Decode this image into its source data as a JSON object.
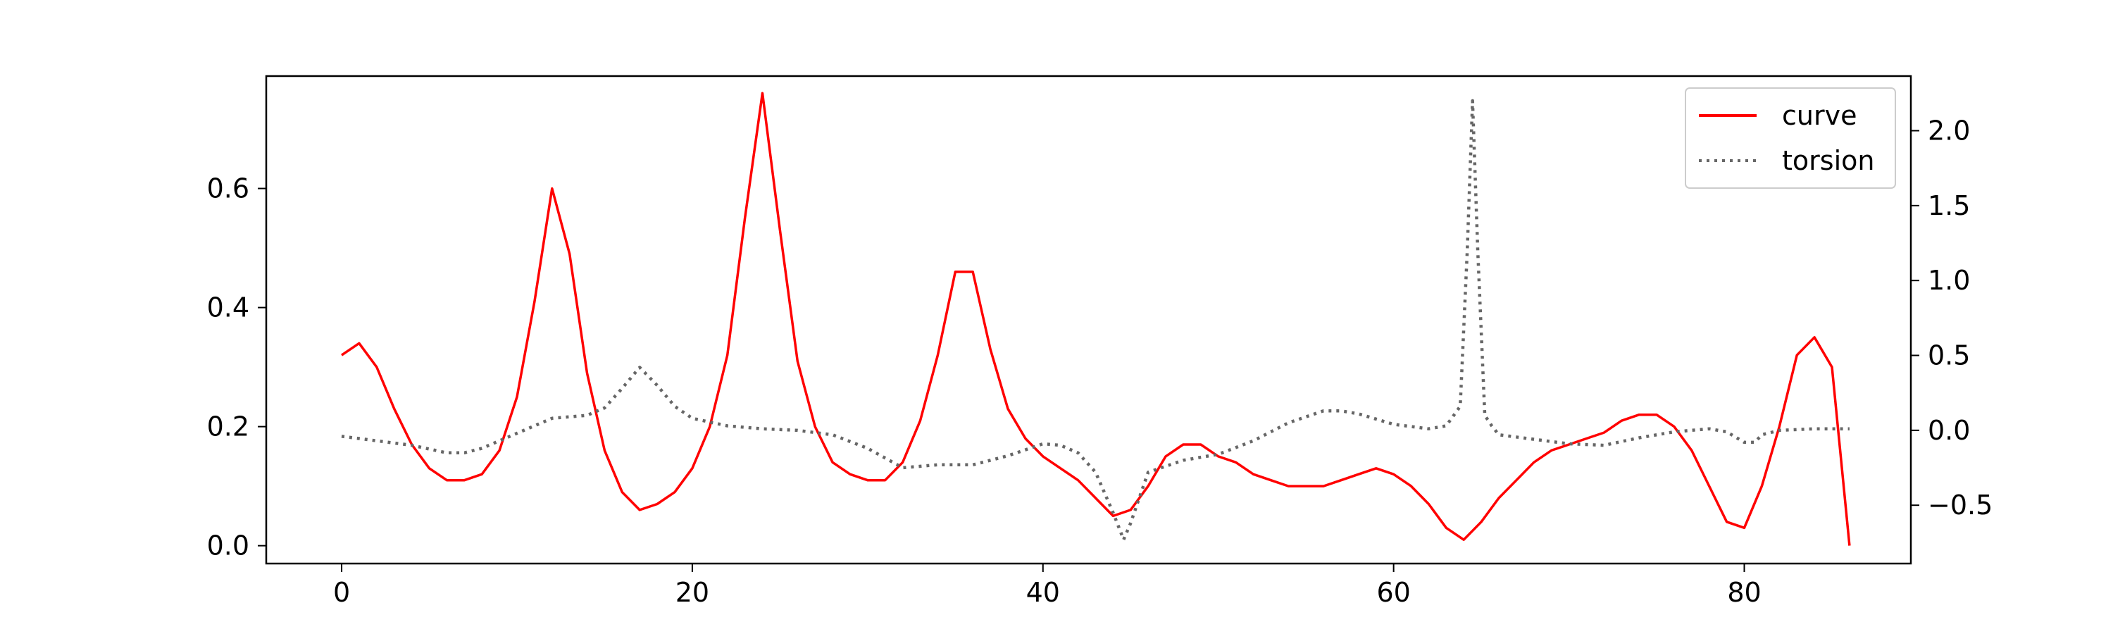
{
  "chart_data": {
    "type": "line",
    "title": "",
    "xlabel": "",
    "ylabel": "",
    "y2label": "",
    "xlim": [
      -4.3,
      89.5
    ],
    "ylim": [
      -0.03,
      0.7888
    ],
    "y2lim": [
      -0.8894,
      2.3645
    ],
    "xticks": [
      0,
      20,
      40,
      60,
      80
    ],
    "yticks": [
      0.0,
      0.2,
      0.4,
      0.6
    ],
    "y2ticks": [
      -0.5,
      0.0,
      0.5,
      1.0,
      1.5,
      2.0
    ],
    "y2tick_labels": [
      "−0.5",
      "0.0",
      "0.5",
      "1.0",
      "1.5",
      "2.0"
    ],
    "grid": false,
    "legend_position": "top-right",
    "series": [
      {
        "name": "curve",
        "axis": "left",
        "color": "#ff0000",
        "style": "solid",
        "x": [
          0,
          1,
          2,
          3,
          4,
          5,
          6,
          7,
          8,
          9,
          10,
          11,
          12,
          13,
          14,
          15,
          16,
          17,
          18,
          19,
          20,
          21,
          22,
          23,
          24,
          25,
          26,
          27,
          28,
          29,
          30,
          31,
          32,
          33,
          34,
          35,
          36,
          37,
          38,
          39,
          40,
          41,
          42,
          43,
          44,
          45,
          46,
          47,
          48,
          49,
          50,
          51,
          52,
          53,
          54,
          55,
          56,
          57,
          58,
          59,
          60,
          61,
          62,
          63,
          64,
          65,
          66,
          67,
          68,
          69,
          70,
          71,
          72,
          73,
          74,
          75,
          76,
          77,
          78,
          79,
          80,
          81,
          82,
          83,
          84,
          85,
          86
        ],
        "y": [
          0.32,
          0.34,
          0.3,
          0.23,
          0.17,
          0.13,
          0.11,
          0.11,
          0.12,
          0.16,
          0.25,
          0.41,
          0.6,
          0.49,
          0.29,
          0.16,
          0.09,
          0.06,
          0.07,
          0.09,
          0.13,
          0.2,
          0.32,
          0.55,
          0.76,
          0.53,
          0.31,
          0.2,
          0.14,
          0.12,
          0.11,
          0.11,
          0.14,
          0.21,
          0.32,
          0.46,
          0.46,
          0.33,
          0.23,
          0.18,
          0.15,
          0.13,
          0.11,
          0.08,
          0.05,
          0.06,
          0.1,
          0.15,
          0.17,
          0.17,
          0.15,
          0.14,
          0.12,
          0.11,
          0.1,
          0.1,
          0.1,
          0.11,
          0.12,
          0.13,
          0.12,
          0.1,
          0.07,
          0.03,
          0.01,
          0.04,
          0.08,
          0.11,
          0.14,
          0.16,
          0.17,
          0.18,
          0.19,
          0.21,
          0.22,
          0.22,
          0.2,
          0.16,
          0.1,
          0.04,
          0.03,
          0.1,
          0.2,
          0.32,
          0.35,
          0.3,
          0.0
        ]
      },
      {
        "name": "torsion",
        "axis": "right",
        "color": "#666666",
        "style": "dotted",
        "x": [
          0,
          2,
          4,
          6,
          7,
          8,
          10,
          12,
          14,
          15,
          16,
          17,
          18,
          19,
          20,
          22,
          24,
          26,
          28,
          30,
          32,
          34,
          36,
          38,
          40,
          41,
          42,
          43,
          44,
          44.6,
          45,
          46,
          48,
          50,
          52,
          54,
          56,
          57,
          58,
          60,
          62,
          63,
          63.8,
          64.2,
          64.5,
          64.8,
          65.2,
          65.6,
          66,
          68,
          70,
          72,
          74,
          76,
          78,
          79,
          80,
          80.6,
          81,
          82,
          84,
          86
        ],
        "y": [
          -0.04,
          -0.07,
          -0.1,
          -0.15,
          -0.15,
          -0.12,
          -0.02,
          0.08,
          0.1,
          0.15,
          0.28,
          0.42,
          0.3,
          0.16,
          0.08,
          0.03,
          0.01,
          0.0,
          -0.03,
          -0.12,
          -0.25,
          -0.23,
          -0.23,
          -0.17,
          -0.09,
          -0.1,
          -0.15,
          -0.28,
          -0.55,
          -0.73,
          -0.62,
          -0.28,
          -0.2,
          -0.16,
          -0.07,
          0.05,
          0.13,
          0.13,
          0.11,
          0.04,
          0.01,
          0.03,
          0.16,
          1.2,
          2.2,
          1.2,
          0.1,
          0.03,
          -0.03,
          -0.06,
          -0.09,
          -0.1,
          -0.05,
          -0.01,
          0.01,
          -0.01,
          -0.08,
          -0.08,
          -0.03,
          0.0,
          0.01,
          0.01
        ]
      }
    ]
  }
}
